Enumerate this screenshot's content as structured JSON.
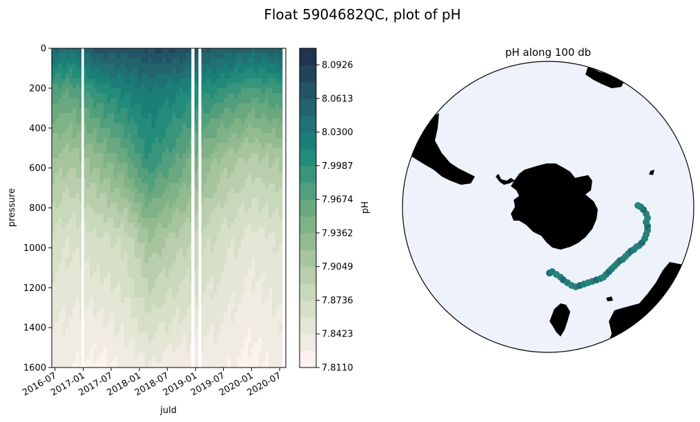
{
  "figure": {
    "suptitle": "Float 5904682QC, plot of pH"
  },
  "chart_data": [
    {
      "type": "heatmap",
      "xlabel": "juld",
      "ylabel": "pressure",
      "xticks": [
        "2016-07",
        "2017-01",
        "2017-07",
        "2018-01",
        "2018-07",
        "2019-01",
        "2019-07",
        "2020-01",
        "2020-07"
      ],
      "yticks": [
        0,
        200,
        400,
        600,
        800,
        1000,
        1200,
        1400,
        1600
      ],
      "ylim": [
        1600,
        0
      ],
      "xlim": [
        "2016-06-10",
        "2020-08-10"
      ],
      "colorbar": {
        "label": "pH",
        "ticks": [
          "8.0926",
          "8.0613",
          "8.0300",
          "7.9987",
          "7.9674",
          "7.9362",
          "7.9049",
          "7.8736",
          "7.8423",
          "7.8110"
        ],
        "min": 7.811,
        "max": 8.108,
        "levels": 19,
        "colors": [
          "#fdf3ee",
          "#f1ece3",
          "#e4e6d6",
          "#d6dfc8",
          "#c8d8ba",
          "#b8cead",
          "#a6c59e",
          "#93bb91",
          "#7fb287",
          "#6aa880",
          "#529f7d",
          "#38957b",
          "#238b7a",
          "#1b7f78",
          "#1f7173",
          "#22636c",
          "#235465",
          "#22445a",
          "#1f344e"
        ]
      },
      "gaps": [
        {
          "from": "2016-12-20",
          "to": "2017-01-05"
        },
        {
          "from": "2018-12-05",
          "to": "2018-12-25"
        },
        {
          "from": "2019-01-20",
          "to": "2019-02-08"
        },
        {
          "from": "2020-07-20",
          "to": "2020-08-10"
        }
      ],
      "profiles": [
        {
          "date": "2016-06-15",
          "surface_to_deep_pH_breaks": [
            8.05,
            7.98,
            7.92,
            7.87,
            7.83
          ]
        },
        {
          "date": "2016-10-01",
          "surface_to_deep_pH_breaks": [
            8.04,
            7.97,
            7.91,
            7.86,
            7.83
          ]
        },
        {
          "date": "2017-04-01",
          "surface_to_deep_pH_breaks": [
            8.07,
            8.0,
            7.93,
            7.87,
            7.82
          ]
        },
        {
          "date": "2017-10-01",
          "surface_to_deep_pH_breaks": [
            8.07,
            8.02,
            7.96,
            7.88,
            7.83
          ]
        },
        {
          "date": "2018-03-01",
          "surface_to_deep_pH_breaks": [
            8.08,
            8.03,
            8.0,
            7.92,
            7.84
          ]
        },
        {
          "date": "2018-09-01",
          "surface_to_deep_pH_breaks": [
            8.08,
            8.02,
            7.97,
            7.9,
            7.83
          ]
        },
        {
          "date": "2019-06-01",
          "surface_to_deep_pH_breaks": [
            8.06,
            8.0,
            7.92,
            7.87,
            7.83
          ]
        },
        {
          "date": "2020-01-01",
          "surface_to_deep_pH_breaks": [
            8.05,
            7.98,
            7.9,
            7.85,
            7.82
          ]
        },
        {
          "date": "2020-07-01",
          "surface_to_deep_pH_breaks": [
            8.06,
            7.99,
            7.91,
            7.86,
            7.83
          ]
        }
      ]
    },
    {
      "type": "scatter",
      "title": "pH along 100 db",
      "projection": "south-polar-stereographic",
      "ocean_color": "#edf2fb",
      "land_color": "#000000",
      "track_colors": [
        "#1f6b73",
        "#1b7f78",
        "#26867a",
        "#2f7d76"
      ]
    }
  ]
}
